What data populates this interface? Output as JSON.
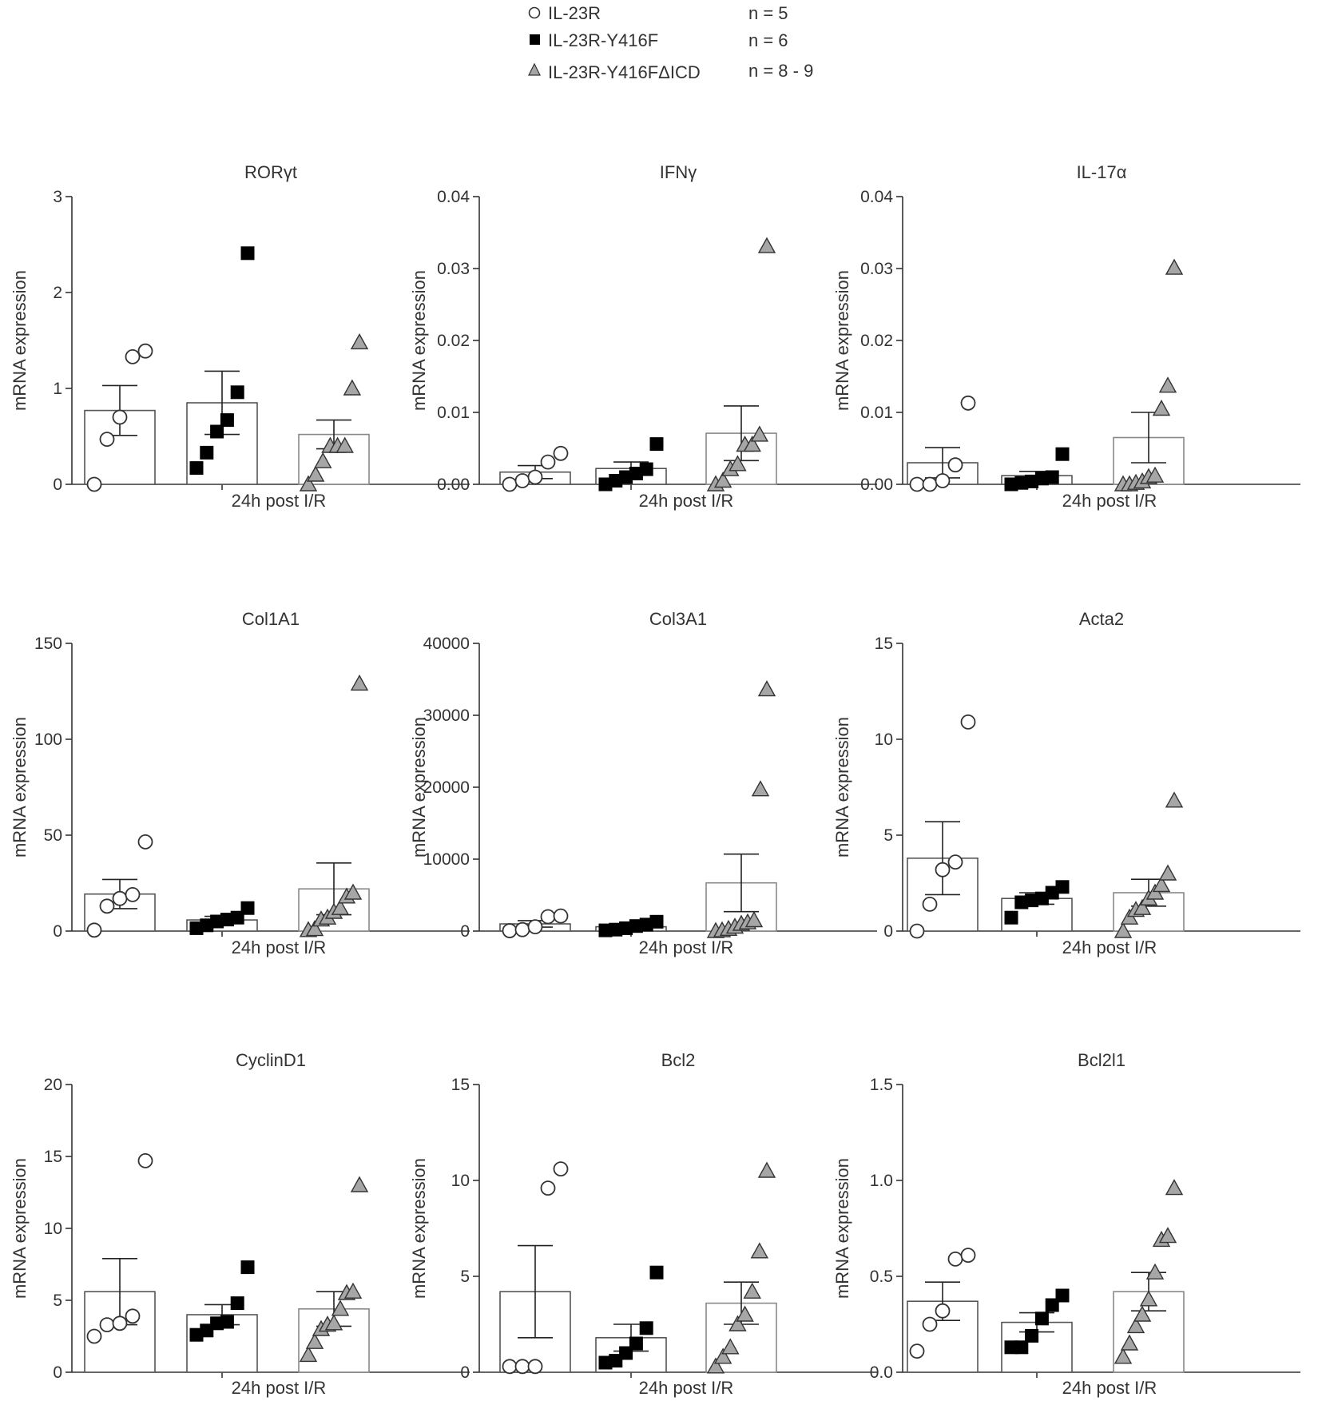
{
  "legend": {
    "entries": [
      {
        "marker": "circle-open-icon",
        "label": "IL-23R",
        "n": "n = 5",
        "color": "#ffffff"
      },
      {
        "marker": "square-filled-icon",
        "label": "IL-23R-Y416F",
        "n": "n = 6",
        "color": "#000000"
      },
      {
        "marker": "triangle-grey-icon",
        "label": "IL-23R-Y416FΔICD",
        "n": "n = 8 - 9",
        "color": "#a6a6a6"
      }
    ]
  },
  "colors": {
    "axis": "#333333",
    "open_fill": "#ffffff",
    "filled": "#000000",
    "grey": "#a6a6a6",
    "bar_edge": "#555555"
  },
  "chart_data": [
    {
      "type": "bar",
      "title": "RORγt",
      "ylabel": "mRNA expression",
      "xlabel": "24h post I/R",
      "ylim": [
        0,
        3
      ],
      "yticks": [
        0,
        1,
        2,
        3
      ],
      "ytick_labels": [
        "0",
        "1",
        "2",
        "3"
      ],
      "series": [
        {
          "name": "IL-23R",
          "mean": 0.77,
          "sem": 0.26,
          "points": [
            0,
            0.47,
            0.7,
            1.33,
            1.39
          ]
        },
        {
          "name": "IL-23R-Y416F",
          "mean": 0.85,
          "sem": 0.33,
          "points": [
            0.17,
            0.33,
            0.55,
            0.67,
            0.96,
            2.41
          ]
        },
        {
          "name": "IL-23R-Y416FΔICD",
          "mean": 0.52,
          "sem": 0.15,
          "points": [
            0,
            0.1,
            0.24,
            0.4,
            0.4,
            0.4,
            1.0,
            1.48
          ]
        }
      ]
    },
    {
      "type": "bar",
      "title": "IFNγ",
      "ylabel": "mRNA expression",
      "xlabel": "24h post I/R",
      "ylim": [
        0,
        0.04
      ],
      "yticks": [
        0,
        0.01,
        0.02,
        0.03,
        0.04
      ],
      "ytick_labels": [
        "0.00",
        "0.01",
        "0.02",
        "0.03",
        "0.04"
      ],
      "series": [
        {
          "name": "IL-23R",
          "mean": 0.0017,
          "sem": 0.0009,
          "points": [
            0,
            0.0005,
            0.001,
            0.0031,
            0.0043
          ]
        },
        {
          "name": "IL-23R-Y416F",
          "mean": 0.0022,
          "sem": 0.0009,
          "points": [
            0,
            0.0005,
            0.001,
            0.0015,
            0.0021,
            0.0056
          ]
        },
        {
          "name": "IL-23R-Y416FΔICD",
          "mean": 0.0071,
          "sem": 0.0038,
          "points": [
            0,
            0.0005,
            0.0021,
            0.0028,
            0.0055,
            0.0055,
            0.0069,
            0.0331
          ]
        }
      ]
    },
    {
      "type": "bar",
      "title": "IL-17α",
      "ylabel": "mRNA expression",
      "xlabel": "24h post I/R",
      "ylim": [
        0,
        0.04
      ],
      "yticks": [
        0,
        0.01,
        0.02,
        0.03,
        0.04
      ],
      "ytick_labels": [
        "0.00",
        "0.01",
        "0.02",
        "0.03",
        "0.04"
      ],
      "series": [
        {
          "name": "IL-23R",
          "mean": 0.003,
          "sem": 0.0021,
          "points": [
            0,
            0,
            0.0005,
            0.0027,
            0.0113
          ]
        },
        {
          "name": "IL-23R-Y416F",
          "mean": 0.0012,
          "sem": 0.0006,
          "points": [
            0,
            0.0002,
            0.0004,
            0.0008,
            0.001,
            0.0042
          ]
        },
        {
          "name": "IL-23R-Y416FΔICD",
          "mean": 0.0065,
          "sem": 0.0035,
          "points": [
            0,
            0,
            0.0002,
            0.0004,
            0.001,
            0.0012,
            0.0105,
            0.0137,
            0.0301
          ]
        }
      ]
    },
    {
      "type": "bar",
      "title": "Col1A1",
      "ylabel": "mRNA expression",
      "xlabel": "24h post I/R",
      "ylim": [
        0,
        150
      ],
      "yticks": [
        0,
        50,
        100,
        150
      ],
      "ytick_labels": [
        "0",
        "50",
        "100",
        "150"
      ],
      "series": [
        {
          "name": "IL-23R",
          "mean": 19.3,
          "sem": 7.6,
          "points": [
            0.5,
            13,
            17,
            19,
            46.5
          ]
        },
        {
          "name": "IL-23R-Y416F",
          "mean": 5.8,
          "sem": 1.9,
          "points": [
            1.5,
            3,
            5,
            6,
            7,
            12
          ]
        },
        {
          "name": "IL-23R-Y416FΔICD",
          "mean": 22,
          "sem": 13.5,
          "points": [
            0.5,
            1,
            6,
            7,
            10,
            12,
            18,
            20,
            129
          ]
        }
      ]
    },
    {
      "type": "bar",
      "title": "Col3A1",
      "ylabel": "mRNA expression",
      "xlabel": "24h post I/R",
      "ylim": [
        0,
        40000
      ],
      "yticks": [
        0,
        10000,
        20000,
        30000,
        40000
      ],
      "ytick_labels": [
        "0",
        "10000",
        "20000",
        "30000",
        "40000"
      ],
      "series": [
        {
          "name": "IL-23R",
          "mean": 1000,
          "sem": 450,
          "points": [
            50,
            200,
            600,
            2000,
            2100
          ]
        },
        {
          "name": "IL-23R-Y416F",
          "mean": 600,
          "sem": 220,
          "points": [
            100,
            200,
            400,
            700,
            900,
            1300
          ]
        },
        {
          "name": "IL-23R-Y416FΔICD",
          "mean": 6700,
          "sem": 4000,
          "points": [
            0,
            100,
            300,
            600,
            1000,
            1200,
            1500,
            19700,
            33600
          ]
        }
      ]
    },
    {
      "type": "bar",
      "title": "Acta2",
      "ylabel": "mRNA expression",
      "xlabel": "24h post I/R",
      "ylim": [
        0,
        15
      ],
      "yticks": [
        0,
        5,
        10,
        15
      ],
      "ytick_labels": [
        "0",
        "5",
        "10",
        "15"
      ],
      "series": [
        {
          "name": "IL-23R",
          "mean": 3.8,
          "sem": 1.9,
          "points": [
            0,
            1.4,
            3.2,
            3.6,
            10.9
          ]
        },
        {
          "name": "IL-23R-Y416F",
          "mean": 1.7,
          "sem": 0.3,
          "points": [
            0.7,
            1.5,
            1.6,
            1.7,
            2.0,
            2.3
          ]
        },
        {
          "name": "IL-23R-Y416FΔICD",
          "mean": 2.0,
          "sem": 0.7,
          "points": [
            0,
            0.7,
            1.1,
            1.2,
            1.7,
            2.0,
            2.4,
            3.0,
            6.8
          ]
        }
      ]
    },
    {
      "type": "bar",
      "title": "CyclinD1",
      "ylabel": "mRNA expression",
      "xlabel": "24h post I/R",
      "ylim": [
        0,
        20
      ],
      "yticks": [
        0,
        5,
        10,
        15,
        20
      ],
      "ytick_labels": [
        "0",
        "5",
        "10",
        "15",
        "20"
      ],
      "series": [
        {
          "name": "IL-23R",
          "mean": 5.6,
          "sem": 2.3,
          "points": [
            2.5,
            3.3,
            3.4,
            3.9,
            14.7
          ]
        },
        {
          "name": "IL-23R-Y416F",
          "mean": 4.0,
          "sem": 0.7,
          "points": [
            2.6,
            2.9,
            3.4,
            3.5,
            4.8,
            7.3
          ]
        },
        {
          "name": "IL-23R-Y416FΔICD",
          "mean": 4.4,
          "sem": 1.2,
          "points": [
            1.2,
            2.1,
            3.0,
            3.3,
            3.4,
            4.4,
            5.5,
            5.6,
            13.0
          ]
        }
      ]
    },
    {
      "type": "bar",
      "title": "Bcl2",
      "ylabel": "mRNA expression",
      "xlabel": "24h post I/R",
      "ylim": [
        0,
        15
      ],
      "yticks": [
        0,
        5,
        10,
        15
      ],
      "ytick_labels": [
        "0",
        "5",
        "10",
        "15"
      ],
      "series": [
        {
          "name": "IL-23R",
          "mean": 4.2,
          "sem": 2.4,
          "points": [
            0.3,
            0.3,
            0.3,
            9.6,
            10.6
          ]
        },
        {
          "name": "IL-23R-Y416F",
          "mean": 1.8,
          "sem": 0.7,
          "points": [
            0.5,
            0.6,
            1.0,
            1.5,
            2.3,
            5.2
          ]
        },
        {
          "name": "IL-23R-Y416FΔICD",
          "mean": 3.6,
          "sem": 1.1,
          "points": [
            0.3,
            0.8,
            1.3,
            2.5,
            3.0,
            4.2,
            6.3,
            10.5
          ]
        }
      ]
    },
    {
      "type": "bar",
      "title": "Bcl2l1",
      "ylabel": "mRNA expression",
      "xlabel": "24h post I/R",
      "ylim": [
        0,
        1.5
      ],
      "yticks": [
        0,
        0.5,
        1.0,
        1.5
      ],
      "ytick_labels": [
        "0.0",
        "0.5",
        "1.0",
        "1.5"
      ],
      "series": [
        {
          "name": "IL-23R",
          "mean": 0.37,
          "sem": 0.1,
          "points": [
            0.11,
            0.25,
            0.32,
            0.59,
            0.61
          ]
        },
        {
          "name": "IL-23R-Y416F",
          "mean": 0.26,
          "sem": 0.05,
          "points": [
            0.13,
            0.13,
            0.19,
            0.28,
            0.35,
            0.4
          ]
        },
        {
          "name": "IL-23R-Y416FΔICD",
          "mean": 0.42,
          "sem": 0.1,
          "points": [
            0.08,
            0.15,
            0.24,
            0.3,
            0.38,
            0.52,
            0.69,
            0.71,
            0.96
          ]
        }
      ]
    }
  ]
}
